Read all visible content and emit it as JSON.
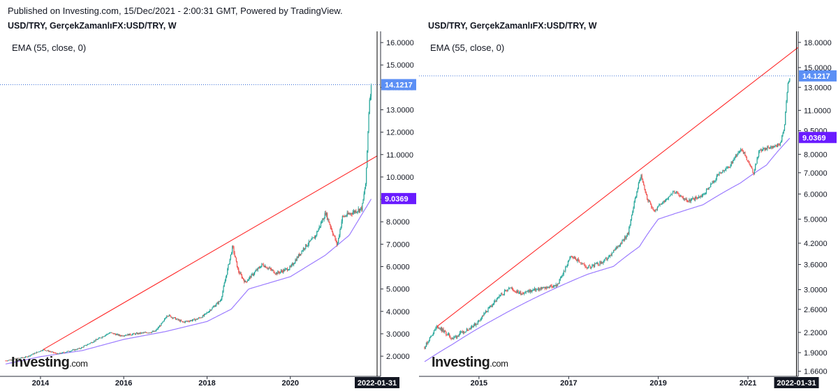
{
  "header": {
    "text": "Published on Investing.com, 15/Dec/2021 - 2:00:31 GMT, Powered by TradingView."
  },
  "colors": {
    "candle_up": "#26a69a",
    "candle_down": "#ef5350",
    "ema": "#9b7bff",
    "trendline": "#ff2a2a",
    "price_label_bg": "#5b8ff5",
    "ema_label_bg": "#6a1bff",
    "crosshair": "#000000"
  },
  "logo": {
    "text": "Investing",
    "suffix": ".com"
  },
  "chart_data": [
    {
      "type": "candlestick",
      "title": "USD/TRY, GerçekZamanlıFX:USD/TRY, W",
      "indicator": "EMA (55, close, 0)",
      "scale": "linear",
      "ylim": [
        1.1,
        16.5
      ],
      "yticks": [
        "16.0000",
        "15.0000",
        "14.0000",
        "13.0000",
        "12.0000",
        "11.0000",
        "10.0000",
        "9.0000",
        "8.0000",
        "7.0000",
        "6.0000",
        "5.0000",
        "4.0000",
        "3.0000",
        "2.0000"
      ],
      "xticks": [
        "2014",
        "2016",
        "2018",
        "2020"
      ],
      "x_range": [
        "2013-03-01",
        "2022-01-31"
      ],
      "current_price": "14.1217",
      "ema_value": "9.0369",
      "cursor_date": "2022-01-31",
      "close_anchors": [
        [
          "2013-03-01",
          1.8
        ],
        [
          "2013-09-01",
          1.97
        ],
        [
          "2014-01-26",
          2.3
        ],
        [
          "2014-06-01",
          2.1
        ],
        [
          "2014-12-15",
          2.35
        ],
        [
          "2015-09-01",
          3.05
        ],
        [
          "2015-12-01",
          2.92
        ],
        [
          "2016-10-01",
          3.1
        ],
        [
          "2016-12-15",
          3.55
        ],
        [
          "2017-01-15",
          3.85
        ],
        [
          "2017-06-01",
          3.52
        ],
        [
          "2017-10-01",
          3.65
        ],
        [
          "2017-12-01",
          3.8
        ],
        [
          "2018-05-01",
          4.5
        ],
        [
          "2018-08-13",
          6.9
        ],
        [
          "2018-10-01",
          5.8
        ],
        [
          "2018-12-01",
          5.3
        ],
        [
          "2019-05-01",
          6.1
        ],
        [
          "2019-09-01",
          5.7
        ],
        [
          "2020-01-01",
          5.95
        ],
        [
          "2020-05-01",
          6.85
        ],
        [
          "2020-08-01",
          7.3
        ],
        [
          "2020-11-06",
          8.4
        ],
        [
          "2021-02-15",
          6.95
        ],
        [
          "2021-04-01",
          8.2
        ],
        [
          "2021-08-01",
          8.5
        ],
        [
          "2021-09-20",
          8.6
        ],
        [
          "2021-10-25",
          9.8
        ],
        [
          "2021-11-23",
          13.4
        ],
        [
          "2021-12-13",
          14.12
        ]
      ],
      "ema_anchors": [
        [
          "2013-03-01",
          1.65
        ],
        [
          "2014-01-01",
          1.98
        ],
        [
          "2015-01-01",
          2.25
        ],
        [
          "2016-01-01",
          2.75
        ],
        [
          "2017-01-01",
          3.1
        ],
        [
          "2018-01-01",
          3.55
        ],
        [
          "2018-08-01",
          4.1
        ],
        [
          "2019-01-01",
          5.0
        ],
        [
          "2020-01-01",
          5.55
        ],
        [
          "2020-11-01",
          6.5
        ],
        [
          "2021-06-01",
          7.4
        ],
        [
          "2021-12-13",
          9.04
        ]
      ],
      "trendline": {
        "points": [
          [
            "2014-01-26",
            2.3
          ],
          [
            "2018-08-13",
            7.2
          ]
        ],
        "extend_to": "2022-01-31"
      }
    },
    {
      "type": "candlestick",
      "title": "USD/TRY, GerçekZamanlıFX:USD/TRY, W",
      "indicator": "EMA (55, close, 0)",
      "scale": "log",
      "ylim": [
        1.6,
        19.5
      ],
      "yticks": [
        "18.0000",
        "15.0000",
        "13.0000",
        "11.0000",
        "9.5000",
        "8.0000",
        "7.0000",
        "6.0000",
        "5.0000",
        "4.2000",
        "3.6000",
        "3.0000",
        "2.6000",
        "2.2000",
        "1.9000",
        "1.6600"
      ],
      "xticks": [
        "2015",
        "2017",
        "2019",
        "2021"
      ],
      "x_range": [
        "2013-10-15",
        "2022-02-14"
      ],
      "current_price": "14.1217",
      "ema_value": "9.0369",
      "cursor_date": "2022-01-31",
      "close_anchors": [
        [
          "2013-10-15",
          1.98
        ],
        [
          "2014-01-26",
          2.3
        ],
        [
          "2014-06-01",
          2.1
        ],
        [
          "2014-12-15",
          2.35
        ],
        [
          "2015-09-01",
          3.05
        ],
        [
          "2015-12-01",
          2.92
        ],
        [
          "2016-10-01",
          3.1
        ],
        [
          "2016-12-15",
          3.55
        ],
        [
          "2017-01-15",
          3.85
        ],
        [
          "2017-06-01",
          3.52
        ],
        [
          "2017-10-01",
          3.65
        ],
        [
          "2017-12-01",
          3.8
        ],
        [
          "2018-05-01",
          4.5
        ],
        [
          "2018-08-13",
          6.9
        ],
        [
          "2018-10-01",
          5.8
        ],
        [
          "2018-12-01",
          5.3
        ],
        [
          "2019-05-01",
          6.1
        ],
        [
          "2019-09-01",
          5.7
        ],
        [
          "2020-01-01",
          5.95
        ],
        [
          "2020-05-01",
          6.85
        ],
        [
          "2020-08-01",
          7.3
        ],
        [
          "2020-11-06",
          8.4
        ],
        [
          "2021-02-15",
          6.95
        ],
        [
          "2021-04-01",
          8.2
        ],
        [
          "2021-08-01",
          8.5
        ],
        [
          "2021-09-20",
          8.6
        ],
        [
          "2021-10-25",
          9.8
        ],
        [
          "2021-11-23",
          13.4
        ],
        [
          "2021-12-13",
          14.12
        ]
      ],
      "ema_anchors": [
        [
          "2013-10-15",
          1.78
        ],
        [
          "2014-06-01",
          2.02
        ],
        [
          "2015-06-01",
          2.45
        ],
        [
          "2016-06-01",
          2.9
        ],
        [
          "2017-06-01",
          3.35
        ],
        [
          "2018-01-01",
          3.55
        ],
        [
          "2018-08-01",
          4.1
        ],
        [
          "2019-01-01",
          5.0
        ],
        [
          "2020-01-01",
          5.55
        ],
        [
          "2020-11-01",
          6.5
        ],
        [
          "2021-06-01",
          7.4
        ],
        [
          "2021-12-13",
          9.04
        ]
      ],
      "trendline": {
        "points": [
          [
            "2014-01-26",
            2.3
          ],
          [
            "2018-08-13",
            7.2
          ]
        ],
        "extend_to": "2022-02-14"
      }
    }
  ]
}
